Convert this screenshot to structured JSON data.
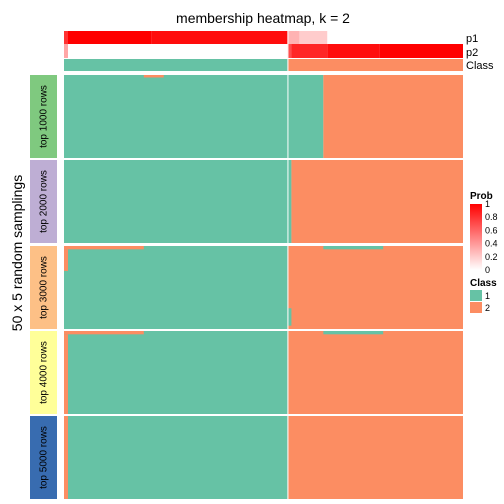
{
  "chart_data": {
    "type": "heatmap",
    "title": "membership heatmap, k = 2",
    "ylabel": "50 x 5 random samplings",
    "n_columns": 100,
    "class_colors": {
      "1": "#66C2A5",
      "2": "#FC8D62"
    },
    "annotations": [
      {
        "name": "p1",
        "segments": [
          {
            "from": 0,
            "to": 1,
            "prob": 0.8
          },
          {
            "from": 1,
            "to": 22,
            "prob": 1.0
          },
          {
            "from": 22,
            "to": 56,
            "prob": 0.95
          },
          {
            "from": 56,
            "to": 59,
            "prob": 0.3
          },
          {
            "from": 59,
            "to": 66,
            "prob": 0.2
          },
          {
            "from": 66,
            "to": 100,
            "prob": 0.0
          }
        ]
      },
      {
        "name": "p2",
        "segments": [
          {
            "from": 0,
            "to": 1,
            "prob": 0.35
          },
          {
            "from": 1,
            "to": 56,
            "prob": 0.0
          },
          {
            "from": 56,
            "to": 57,
            "prob": 0.7
          },
          {
            "from": 57,
            "to": 66,
            "prob": 0.85
          },
          {
            "from": 66,
            "to": 79,
            "prob": 0.95
          },
          {
            "from": 79,
            "to": 100,
            "prob": 1.0
          }
        ]
      },
      {
        "name": "Class",
        "segments": [
          {
            "from": 0,
            "to": 56,
            "class": "1"
          },
          {
            "from": 56,
            "to": 100,
            "class": "2"
          }
        ]
      }
    ],
    "row_groups": [
      {
        "label": "top 1000 rows",
        "color": "#7FC97F",
        "split": 65,
        "rects": [
          {
            "x0": 20,
            "x1": 25,
            "y0": 0,
            "y1": 0.03,
            "class": "2"
          }
        ]
      },
      {
        "label": "top 2000 rows",
        "color": "#BEAED4",
        "split": 57,
        "rects": []
      },
      {
        "label": "top 3000 rows",
        "color": "#FDC086",
        "split": 56,
        "rects": [
          {
            "x0": 0,
            "x1": 20,
            "y0": 0,
            "y1": 0.04,
            "class": "2"
          },
          {
            "x0": 0,
            "x1": 1,
            "y0": 0.04,
            "y1": 0.3,
            "class": "2"
          },
          {
            "x0": 56,
            "x1": 57,
            "y0": 0.75,
            "y1": 1.0,
            "class": "1"
          },
          {
            "x0": 65,
            "x1": 80,
            "y0": 0.0,
            "y1": 0.04,
            "class": "1"
          },
          {
            "x0": 56,
            "x1": 100,
            "y0": 0.96,
            "y1": 1.0,
            "class": "2"
          }
        ]
      },
      {
        "label": "top 4000 rows",
        "color": "#FFFF99",
        "split": 56,
        "rects": [
          {
            "x0": 0,
            "x1": 20,
            "y0": 0,
            "y1": 0.04,
            "class": "2"
          },
          {
            "x0": 0,
            "x1": 1,
            "y0": 0.04,
            "y1": 1.0,
            "class": "2"
          },
          {
            "x0": 65,
            "x1": 80,
            "y0": 0.0,
            "y1": 0.04,
            "class": "1"
          }
        ]
      },
      {
        "label": "top 5000 rows",
        "color": "#386CB0",
        "split": 56,
        "rects": [
          {
            "x0": 0,
            "x1": 1,
            "y0": 0,
            "y1": 1.0,
            "class": "2"
          }
        ]
      }
    ],
    "legend": {
      "prob": {
        "title": "Prob",
        "ticks": [
          "1",
          "0.8",
          "0.6",
          "0.4",
          "0.2",
          "0"
        ]
      },
      "class": {
        "title": "Class",
        "items": [
          {
            "label": "1",
            "color": "#66C2A5"
          },
          {
            "label": "2",
            "color": "#FC8D62"
          }
        ]
      }
    }
  }
}
